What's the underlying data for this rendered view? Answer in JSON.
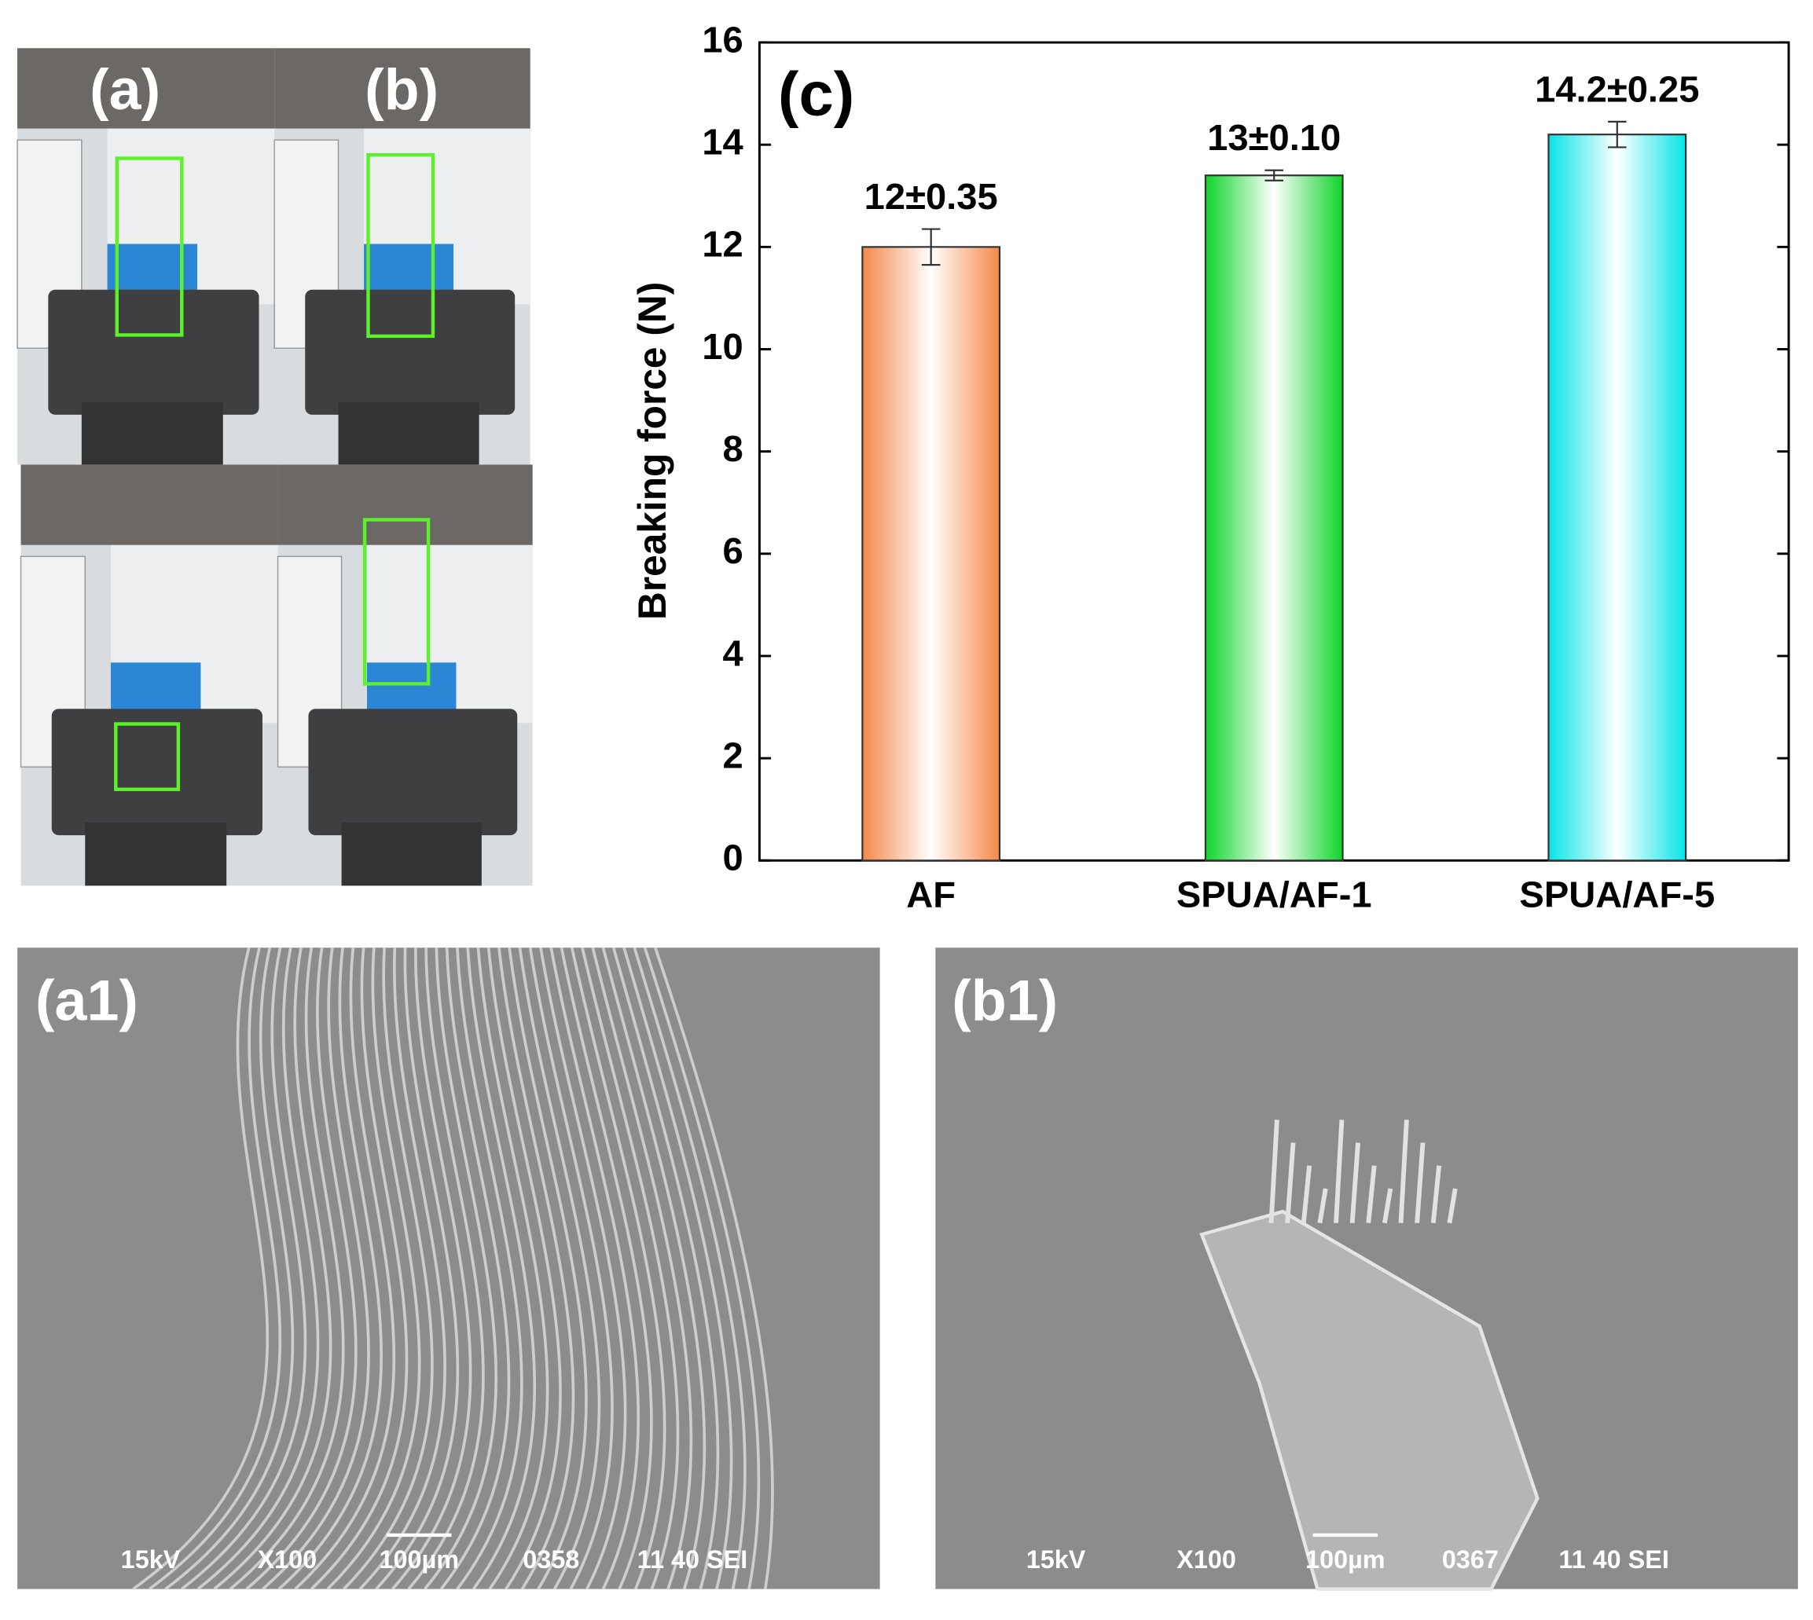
{
  "chart_data": {
    "type": "bar",
    "annotation": "(c)",
    "y_label": "Breaking force (N)",
    "categories": [
      "AF",
      "SPUA/AF-1",
      "SPUA/AF-5"
    ],
    "values": [
      12,
      13.4,
      14.2
    ],
    "errors": [
      0.35,
      0.1,
      0.25
    ],
    "value_labels": [
      "12±0.35",
      "13±0.10",
      "14.2±0.25"
    ],
    "colors": [
      "#f4884a",
      "#0fd42a",
      "#08e3e6"
    ],
    "ylim": [
      0,
      16
    ],
    "yticks": [
      0,
      2,
      4,
      6,
      8,
      10,
      12,
      14,
      16
    ]
  },
  "panels": {
    "photo_labels": [
      "(a)",
      "(b)"
    ],
    "sem": [
      {
        "label": "(a1)",
        "info": [
          "15kV",
          "X100",
          "100µm",
          "0358",
          "11 40 SEI"
        ]
      },
      {
        "label": "(b1)",
        "info": [
          "15kV",
          "X100",
          "100µm",
          "0367",
          "11 40 SEI"
        ]
      }
    ]
  }
}
